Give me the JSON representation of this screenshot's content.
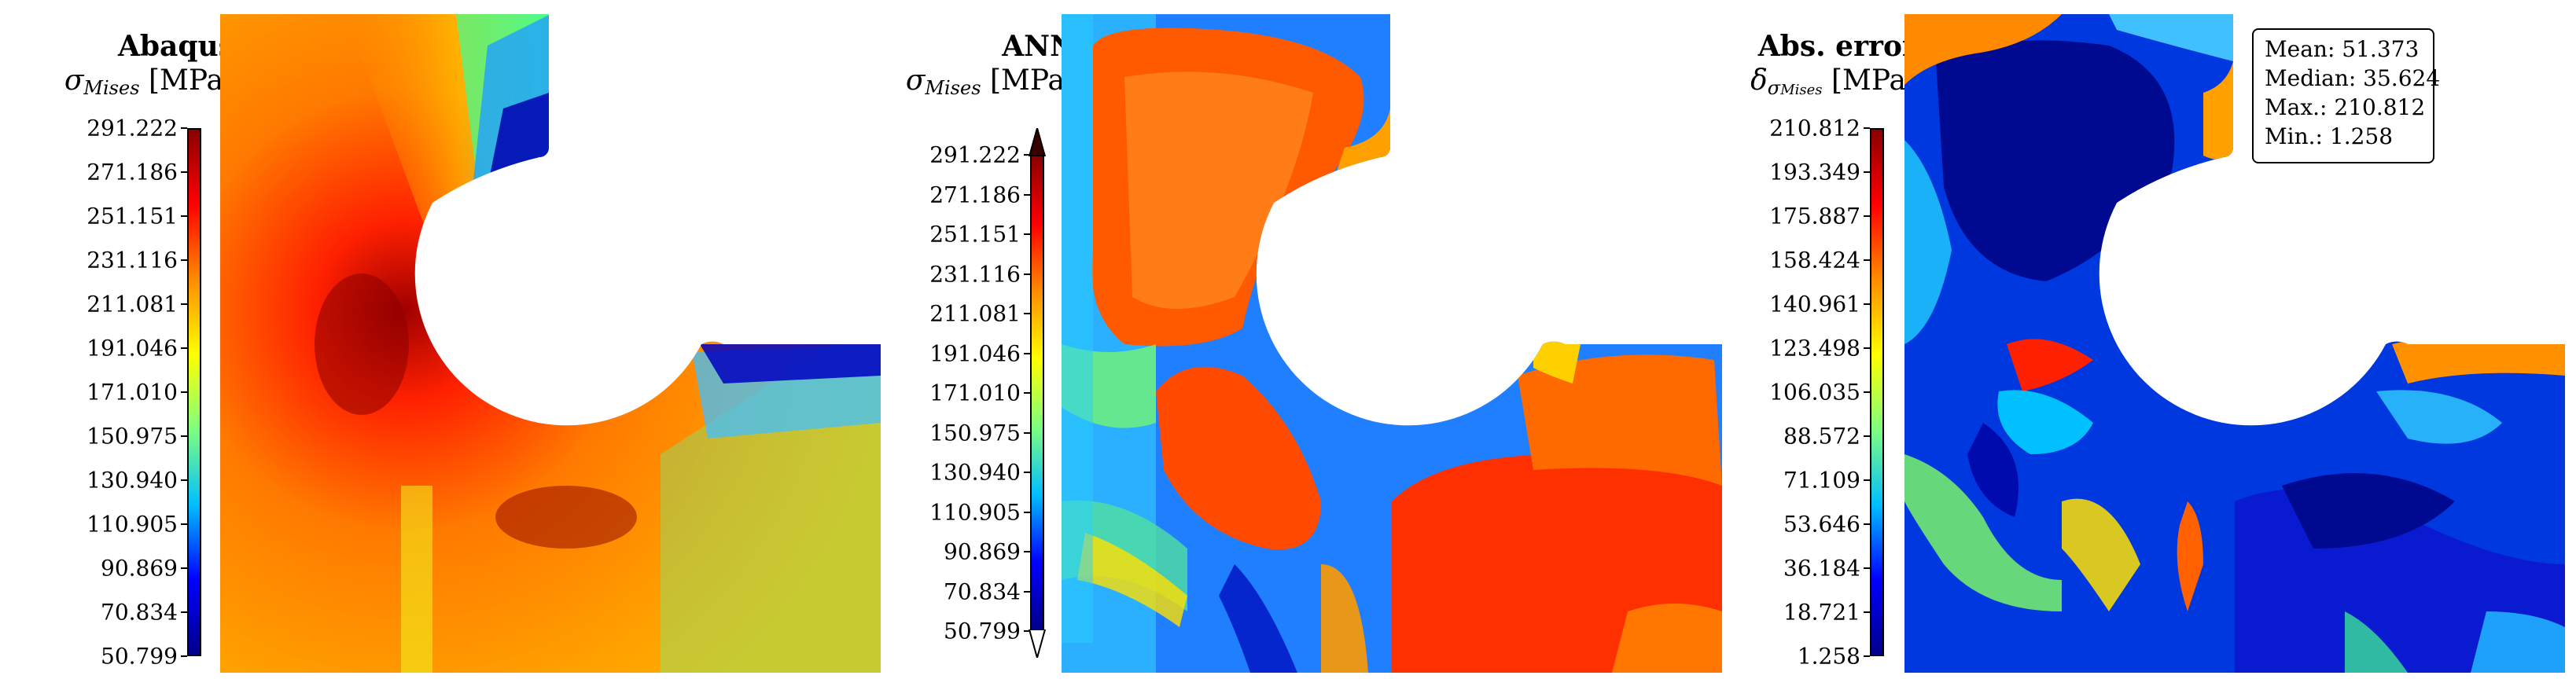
{
  "colormap": [
    "#00008b",
    "#0000ff",
    "#00bfff",
    "#7fff7f",
    "#ffff00",
    "#ff8c00",
    "#ff0000",
    "#8b0000"
  ],
  "panels": [
    {
      "title": "Abaqus",
      "quantity_symbol": "σ",
      "quantity_subscript": "Mises",
      "quantity_unit": "[MPa]",
      "ticks": [
        "291.222",
        "271.186",
        "251.151",
        "231.116",
        "211.081",
        "191.046",
        "171.010",
        "150.975",
        "130.940",
        "110.905",
        "90.869",
        "70.834",
        "50.799"
      ]
    },
    {
      "title": "ANN",
      "quantity_symbol": "σ",
      "quantity_subscript": "Mises",
      "quantity_unit": "[MPa]",
      "ticks": [
        "291.222",
        "271.186",
        "251.151",
        "231.116",
        "211.081",
        "191.046",
        "171.010",
        "150.975",
        "130.940",
        "110.905",
        "90.869",
        "70.834",
        "50.799"
      ]
    },
    {
      "title": "Abs. error",
      "quantity_symbol": "δ",
      "quantity_sub_symbol": "σ",
      "quantity_subscript": "Mises",
      "quantity_unit": "[MPa]",
      "ticks": [
        "210.812",
        "193.349",
        "175.887",
        "158.424",
        "140.961",
        "123.498",
        "106.035",
        "88.572",
        "71.109",
        "53.646",
        "36.184",
        "18.721",
        "1.258"
      ]
    }
  ],
  "stats": {
    "mean": "Mean: 51.373",
    "median": "Median: 35.624",
    "max": "Max.: 210.812",
    "min": "Min.: 1.258"
  }
}
